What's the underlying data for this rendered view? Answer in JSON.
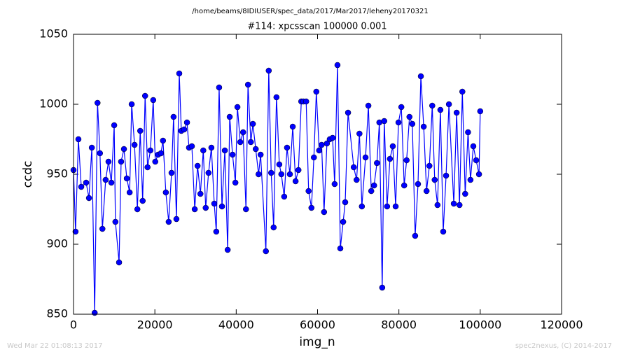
{
  "chart_data": {
    "type": "line",
    "suptitle": "/home/beams/8IDIUSER/spec_data/2017/Mar2017/leheny20170321",
    "title": "#114: xpcsscan 100000 0.001",
    "x_label": "img_n",
    "y_label": "ccdc",
    "footer_left": "Wed Mar 22 01:08:13 2017",
    "footer_right": "spec2nexus, (C) 2014-2017",
    "color": "#0000ff",
    "marker": "circle",
    "grid": false,
    "xlim": [
      0,
      120000
    ],
    "xticks": [
      0,
      20000,
      40000,
      60000,
      80000,
      100000,
      120000
    ],
    "ylim": [
      850,
      1050
    ],
    "yticks": [
      850,
      900,
      950,
      1000,
      1050
    ],
    "x": [
      0,
      500,
      1200,
      1900,
      3100,
      3800,
      4500,
      5200,
      5900,
      6500,
      7100,
      7900,
      8600,
      9300,
      10000,
      10300,
      11200,
      11700,
      12400,
      13100,
      13800,
      14300,
      15000,
      15700,
      16400,
      17000,
      17600,
      18200,
      18900,
      19600,
      20100,
      20800,
      21500,
      22000,
      22700,
      23400,
      24100,
      24600,
      25300,
      26000,
      26500,
      27200,
      27900,
      28400,
      29100,
      29800,
      30500,
      31200,
      31900,
      32500,
      33200,
      33900,
      34600,
      35100,
      35800,
      36500,
      37200,
      37900,
      38400,
      39100,
      39800,
      40300,
      41000,
      41700,
      42400,
      42900,
      43600,
      44100,
      44800,
      45500,
      46000,
      47300,
      48000,
      48600,
      49200,
      49900,
      50600,
      51100,
      51800,
      52500,
      53200,
      53900,
      54600,
      55300,
      56000,
      56500,
      57200,
      57800,
      58500,
      59100,
      59700,
      60400,
      61000,
      61600,
      62300,
      63000,
      63700,
      64200,
      64900,
      65600,
      66300,
      66800,
      67500,
      68900,
      69600,
      70300,
      70900,
      71800,
      72500,
      73200,
      73900,
      74600,
      75200,
      75900,
      76400,
      77100,
      77800,
      78500,
      79200,
      79900,
      80600,
      81300,
      81900,
      82600,
      83300,
      84000,
      84700,
      85400,
      86100,
      86800,
      87500,
      88200,
      88800,
      89500,
      90200,
      90900,
      91600,
      92300,
      93500,
      94200,
      94900,
      95600,
      96300,
      97000,
      97600,
      98300,
      99000,
      99700,
      100000
    ],
    "values": [
      953,
      909,
      975,
      941,
      944,
      933,
      969,
      851,
      1001,
      965,
      911,
      946,
      959,
      944,
      985,
      916,
      887,
      959,
      968,
      947,
      937,
      1000,
      971,
      925,
      981,
      931,
      1006,
      955,
      967,
      1003,
      959,
      964,
      965,
      974,
      937,
      916,
      951,
      991,
      918,
      1022,
      981,
      982,
      987,
      969,
      970,
      925,
      956,
      936,
      967,
      926,
      951,
      969,
      929,
      909,
      1012,
      927,
      967,
      896,
      991,
      964,
      944,
      998,
      973,
      980,
      925,
      1014,
      973,
      986,
      968,
      950,
      964,
      895,
      1024,
      951,
      912,
      1005,
      957,
      950,
      934,
      969,
      950,
      984,
      945,
      953,
      1002,
      1002,
      1002,
      938,
      926,
      962,
      1009,
      967,
      971,
      923,
      972,
      975,
      976,
      943,
      1028,
      897,
      916,
      930,
      994,
      955,
      946,
      979,
      927,
      962,
      999,
      938,
      942,
      958,
      987,
      869,
      988,
      927,
      961,
      970,
      927,
      987,
      998,
      942,
      960,
      991,
      986,
      906,
      943,
      1020,
      984,
      938,
      956,
      999,
      946,
      928,
      996,
      909,
      949,
      1000,
      929,
      994,
      928,
      1009,
      936,
      980,
      946,
      970,
      960,
      950,
      995
    ]
  }
}
